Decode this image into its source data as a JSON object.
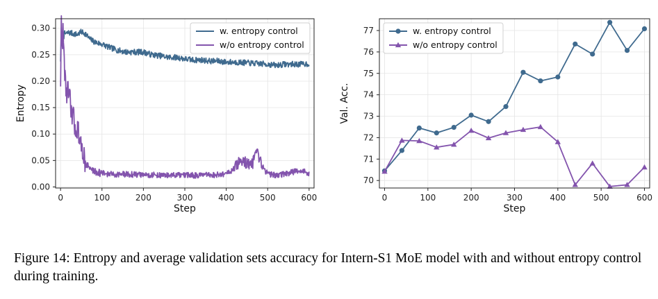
{
  "caption": "Figure 14: Entropy and average validation sets accuracy for Intern-S1 MoE model with and without entropy control during training.",
  "colors": {
    "with": "#3f6a8e",
    "without": "#8354ad"
  },
  "chart_data": [
    {
      "type": "line",
      "xlabel": "Step",
      "ylabel": "Entropy",
      "xlim": [
        -12,
        612
      ],
      "ylim": [
        -0.002,
        0.318
      ],
      "xticks": [
        0,
        100,
        200,
        300,
        400,
        500,
        600
      ],
      "yticks": [
        0.0,
        0.05,
        0.1,
        0.15,
        0.2,
        0.25,
        0.3
      ],
      "ytick_labels": [
        "0.00",
        "0.05",
        "0.10",
        "0.15",
        "0.20",
        "0.25",
        "0.30"
      ],
      "grid": true,
      "legend": "top-right",
      "series": [
        {
          "name": "w. entropy control",
          "color": "#3f6a8e",
          "x": [
            0,
            2,
            4,
            6,
            8,
            10,
            15,
            20,
            30,
            40,
            50,
            60,
            70,
            80,
            90,
            100,
            120,
            140,
            160,
            180,
            200,
            220,
            240,
            260,
            280,
            300,
            320,
            340,
            360,
            380,
            400,
            420,
            440,
            460,
            480,
            500,
            520,
            540,
            560,
            580,
            600
          ],
          "y": [
            0.24,
            0.3,
            0.28,
            0.295,
            0.285,
            0.29,
            0.29,
            0.292,
            0.29,
            0.288,
            0.293,
            0.29,
            0.28,
            0.275,
            0.272,
            0.27,
            0.263,
            0.258,
            0.255,
            0.255,
            0.255,
            0.25,
            0.248,
            0.245,
            0.245,
            0.242,
            0.24,
            0.24,
            0.238,
            0.238,
            0.236,
            0.236,
            0.235,
            0.234,
            0.233,
            0.232,
            0.23,
            0.232,
            0.232,
            0.232,
            0.233
          ]
        },
        {
          "name": "w/o entropy control",
          "color": "#8354ad",
          "x": [
            0,
            2,
            4,
            6,
            8,
            10,
            12,
            15,
            18,
            20,
            22,
            25,
            28,
            30,
            35,
            40,
            45,
            50,
            55,
            60,
            65,
            70,
            80,
            90,
            100,
            120,
            150,
            200,
            250,
            300,
            350,
            380,
            400,
            410,
            420,
            430,
            440,
            450,
            460,
            470,
            475,
            480,
            490,
            500,
            520,
            540,
            560,
            580,
            590,
            600
          ],
          "y": [
            0.2,
            0.31,
            0.26,
            0.3,
            0.25,
            0.22,
            0.2,
            0.17,
            0.19,
            0.16,
            0.17,
            0.15,
            0.13,
            0.14,
            0.11,
            0.11,
            0.1,
            0.07,
            0.065,
            0.045,
            0.04,
            0.035,
            0.03,
            0.028,
            0.026,
            0.024,
            0.024,
            0.023,
            0.022,
            0.022,
            0.022,
            0.023,
            0.025,
            0.03,
            0.035,
            0.045,
            0.05,
            0.045,
            0.04,
            0.055,
            0.065,
            0.05,
            0.035,
            0.025,
            0.022,
            0.024,
            0.028,
            0.032,
            0.028,
            0.024
          ]
        }
      ]
    },
    {
      "type": "line",
      "xlabel": "Step",
      "ylabel": "Val. Acc.",
      "xlim": [
        -12,
        612
      ],
      "ylim": [
        69.65,
        77.55
      ],
      "xticks": [
        0,
        100,
        200,
        300,
        400,
        500,
        600
      ],
      "yticks": [
        70,
        71,
        72,
        73,
        74,
        75,
        76,
        77
      ],
      "grid": true,
      "legend": "top-left",
      "series": [
        {
          "name": "w. entropy control",
          "color": "#3f6a8e",
          "marker": "circle",
          "x": [
            0,
            40,
            80,
            120,
            160,
            200,
            240,
            280,
            320,
            360,
            400,
            440,
            480,
            520,
            560,
            600
          ],
          "y": [
            70.45,
            71.4,
            72.45,
            72.22,
            72.48,
            73.05,
            72.75,
            73.45,
            75.05,
            74.65,
            74.83,
            76.37,
            75.9,
            77.38,
            76.07,
            77.08
          ]
        },
        {
          "name": "w/o entropy control",
          "color": "#8354ad",
          "marker": "triangle",
          "x": [
            0,
            40,
            80,
            120,
            160,
            200,
            240,
            280,
            320,
            360,
            400,
            440,
            480,
            520,
            560,
            600
          ],
          "y": [
            70.42,
            71.87,
            71.85,
            71.55,
            71.68,
            72.33,
            71.98,
            72.22,
            72.37,
            72.5,
            71.8,
            69.8,
            70.8,
            69.72,
            69.8,
            70.62
          ]
        }
      ]
    }
  ]
}
